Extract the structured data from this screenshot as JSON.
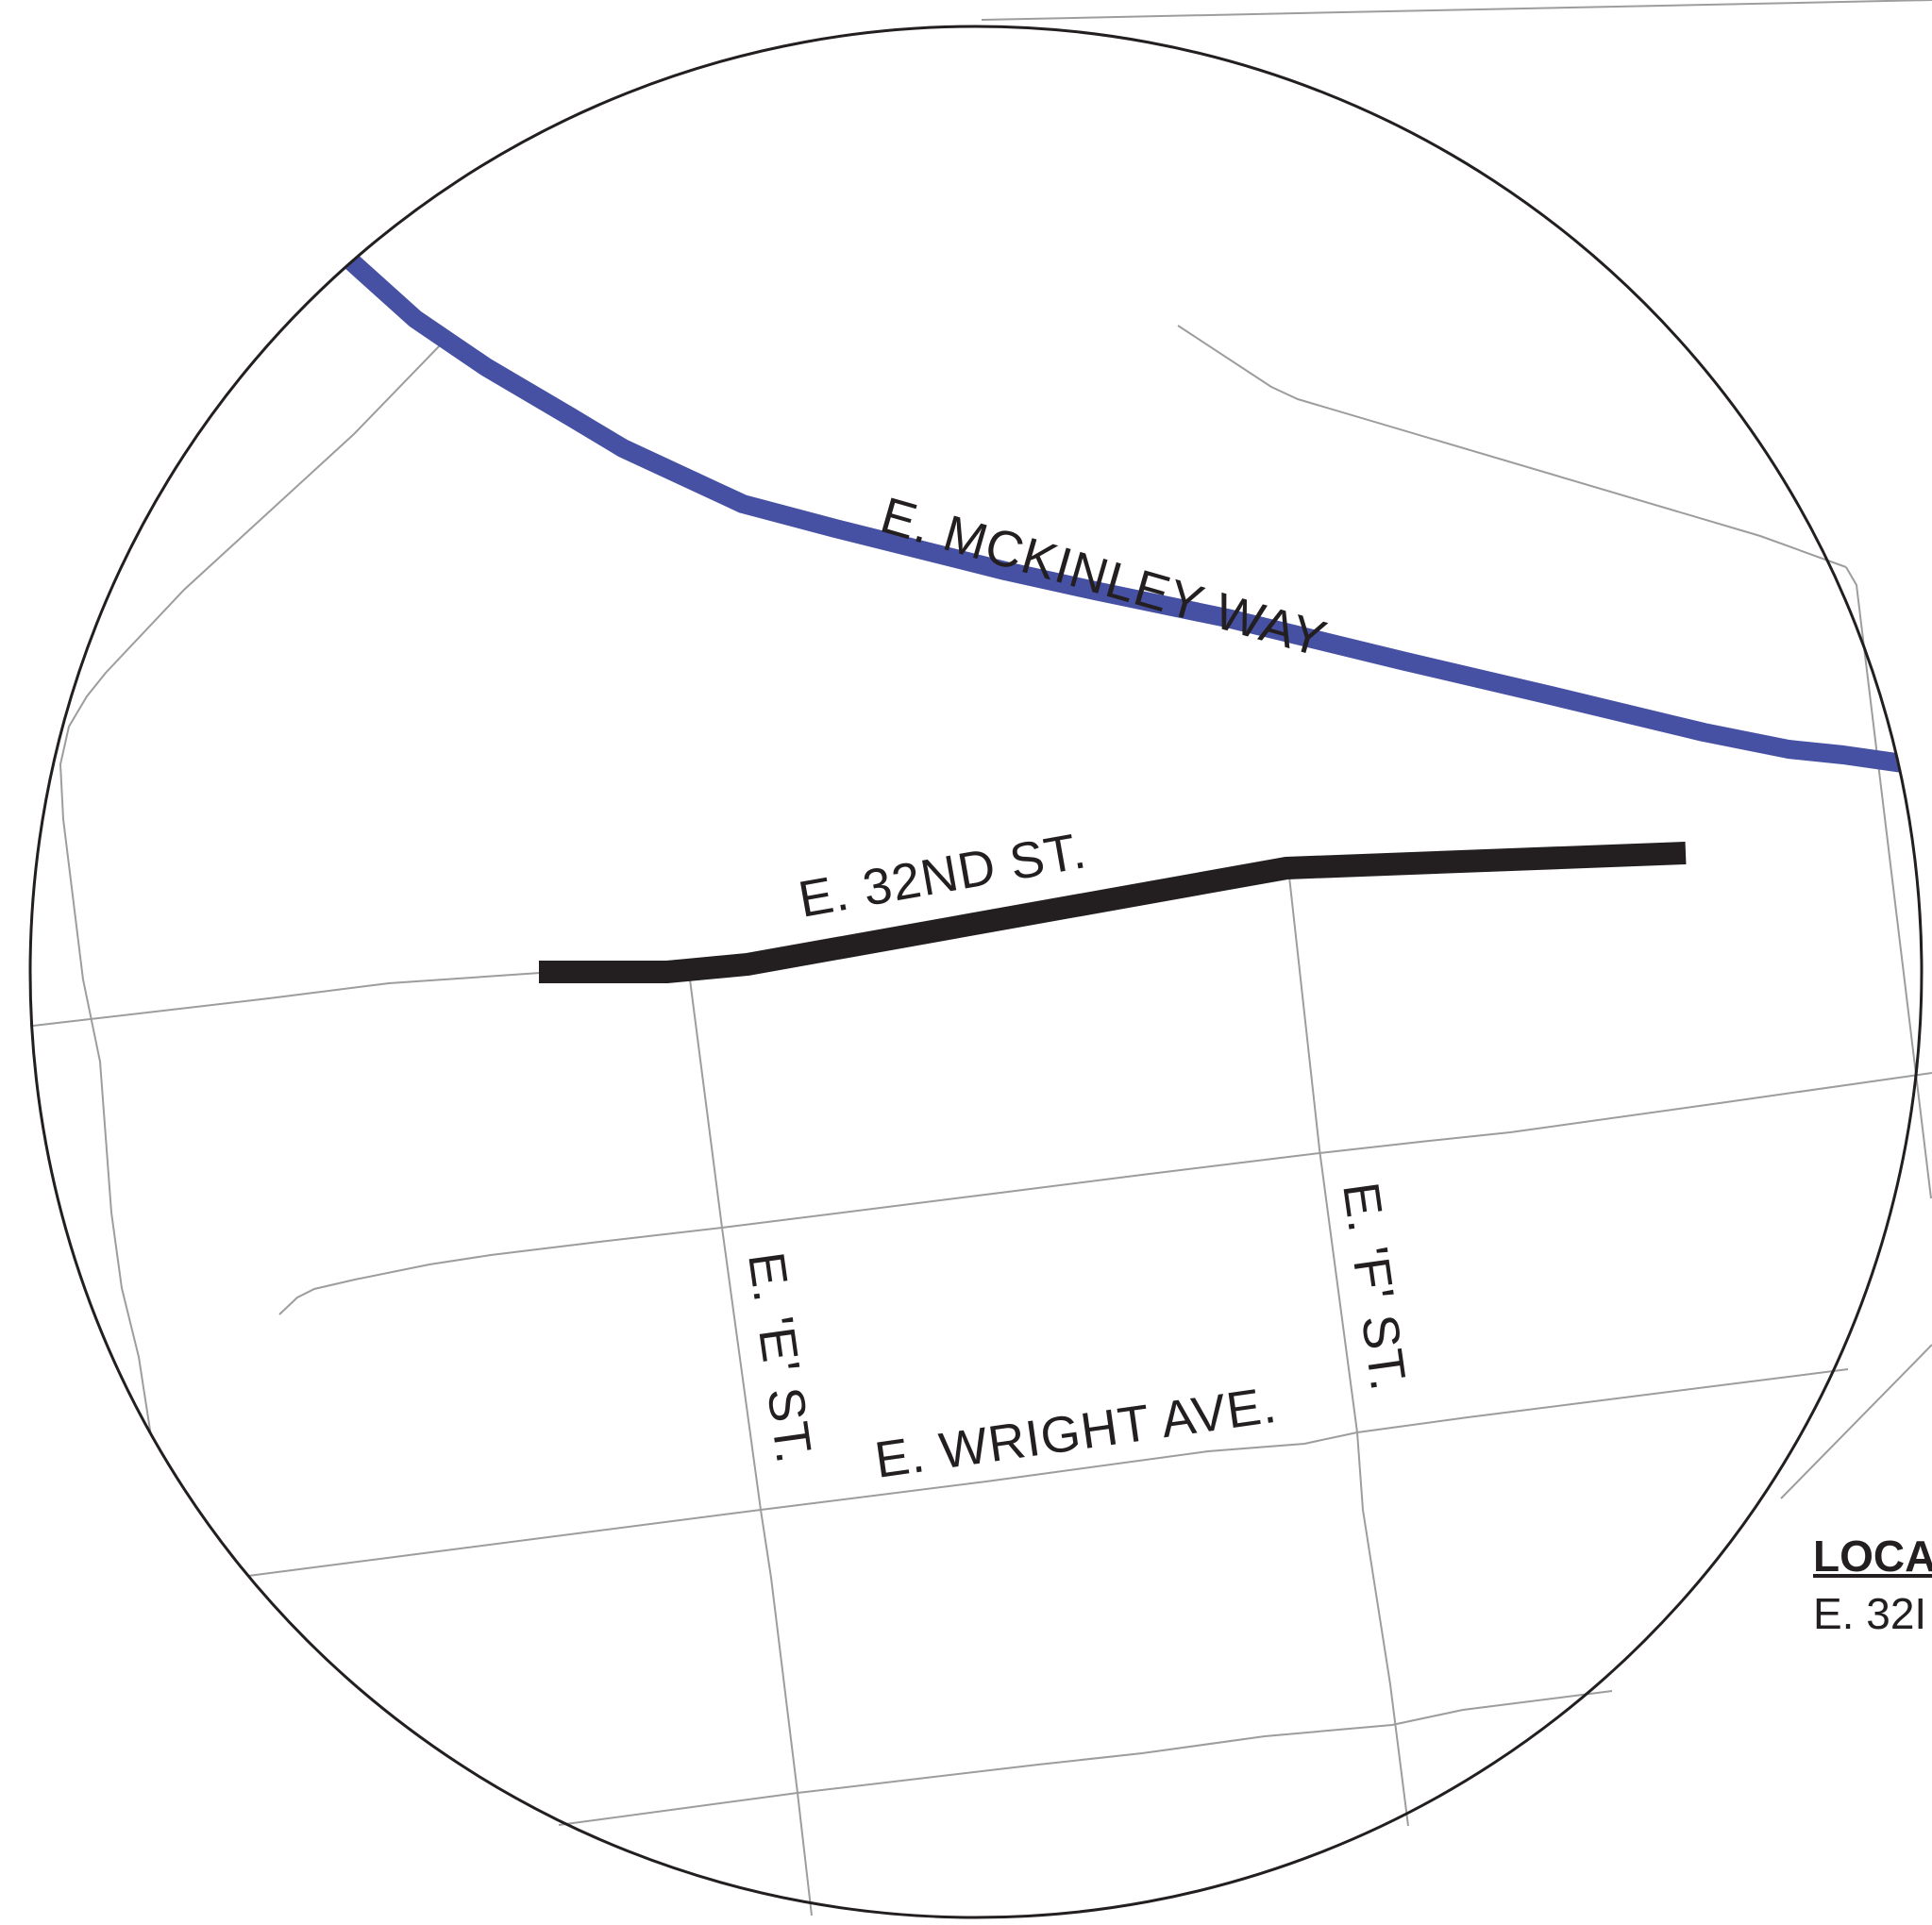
{
  "map": {
    "labels": {
      "mckinley": "E. MCKINLEY WAY",
      "e32nd": "E. 32ND ST.",
      "e_st": "E. 'E' ST.",
      "f_st": "E. 'F' ST.",
      "wright": "E. WRIGHT AVE."
    },
    "legend": {
      "title": "LOCA",
      "subtitle": "E. 32I"
    },
    "colors": {
      "highlight_street": "#231f20",
      "major_road": "#4651a3",
      "minor_street": "#9d9d9d",
      "circle_border": "#231f20"
    }
  }
}
